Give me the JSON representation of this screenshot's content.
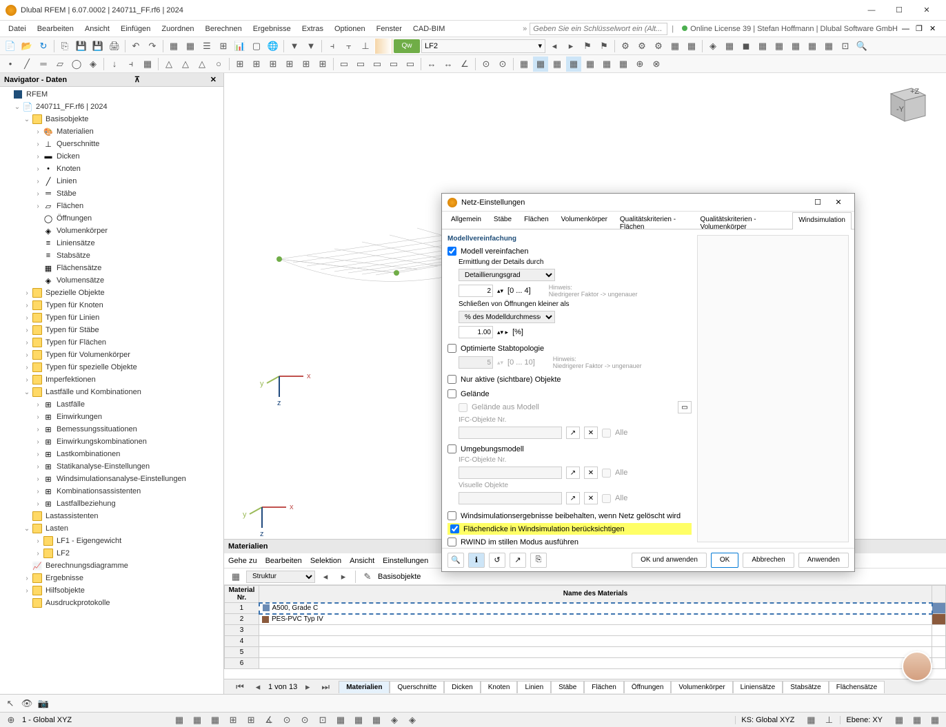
{
  "window": {
    "title": "Dlubal RFEM | 6.07.0002 | 240711_FF.rf6 | 2024",
    "min": "—",
    "max": "☐",
    "close": "✕"
  },
  "menu": {
    "items": [
      "Datei",
      "Bearbeiten",
      "Ansicht",
      "Einfügen",
      "Zuordnen",
      "Berechnen",
      "Ergebnisse",
      "Extras",
      "Optionen",
      "Fenster",
      "CAD-BIM"
    ],
    "keyword_placeholder": "Geben Sie ein Schlüsselwort ein (Alt...",
    "license": "Online License 39 | Stefan Hoffmann | Dlubal Software GmbH"
  },
  "toolbar": {
    "lf_label": "Qw",
    "lf_select": "LF2"
  },
  "navigator": {
    "title": "Navigator - Daten",
    "root": "RFEM",
    "model": "240711_FF.rf6 | 2024",
    "basisobjekte": "Basisobjekte",
    "items_basis": [
      "Materialien",
      "Querschnitte",
      "Dicken",
      "Knoten",
      "Linien",
      "Stäbe",
      "Flächen",
      "Öffnungen",
      "Volumenkörper",
      "Liniensätze",
      "Stabsätze",
      "Flächensätze",
      "Volumensätze"
    ],
    "spezielle": "Spezielle Objekte",
    "typen": [
      "Typen für Knoten",
      "Typen für Linien",
      "Typen für Stäbe",
      "Typen für Flächen",
      "Typen für Volumenkörper",
      "Typen für spezielle Objekte"
    ],
    "imperf": "Imperfektionen",
    "lastfaelle": "Lastfälle und Kombinationen",
    "lf_items": [
      "Lastfälle",
      "Einwirkungen",
      "Bemessungssituationen",
      "Einwirkungskombinationen",
      "Lastkombinationen",
      "Statikanalyse-Einstellungen",
      "Windsimulationsanalyse-Einstellungen",
      "Kombinationsassistenten",
      "Lastfallbeziehung"
    ],
    "lastass": "Lastassistenten",
    "lasten": "Lasten",
    "lasten_items": [
      "LF1 - Eigengewicht",
      "LF2"
    ],
    "berechnung": "Berechnungsdiagramme",
    "ergebnisse": "Ergebnisse",
    "hilfs": "Hilfsobjekte",
    "ausdruck": "Ausdruckprotokolle"
  },
  "materials": {
    "title": "Materialien",
    "menu": [
      "Gehe zu",
      "Bearbeiten",
      "Selektion",
      "Ansicht",
      "Einstellungen"
    ],
    "struktur": "Struktur",
    "basis": "Basisobjekte",
    "col_nr": "Material\nNr.",
    "col_name": "Name des Materials",
    "rows": [
      {
        "nr": "1",
        "name": "A500, Grade C",
        "color": "#6b8bb5"
      },
      {
        "nr": "2",
        "name": "PES-PVC Typ IV",
        "color": "#8b5a3c"
      },
      {
        "nr": "3",
        "name": ""
      },
      {
        "nr": "4",
        "name": ""
      },
      {
        "nr": "5",
        "name": ""
      },
      {
        "nr": "6",
        "name": ""
      }
    ],
    "page": "1 von 13",
    "tabs": [
      "Materialien",
      "Querschnitte",
      "Dicken",
      "Knoten",
      "Linien",
      "Stäbe",
      "Flächen",
      "Öffnungen",
      "Volumenkörper",
      "Liniensätze",
      "Stabsätze",
      "Flächensätze"
    ]
  },
  "dialog": {
    "title": "Netz-Einstellungen",
    "tabs": [
      "Allgemein",
      "Stäbe",
      "Flächen",
      "Volumenkörper",
      "Qualitätskriterien - Flächen",
      "Qualitätskriterien - Volumenkörper",
      "Windsimulation"
    ],
    "active_tab": 6,
    "section": "Modellvereinfachung",
    "simplify": "Modell vereinfachen",
    "detail_label": "Ermittlung der Details durch",
    "detail_method": "Detaillierungsgrad",
    "detail_value": "2",
    "detail_range": "[0 ... 4]",
    "hint_label": "Hinweis:",
    "hint_text": "Niedrigerer Faktor -> ungenauer",
    "close_openings": "Schließen von Öffnungen kleiner als",
    "close_method": "% des Modelldurchmessers",
    "close_value": "1.00",
    "close_unit": "[%]",
    "opt_stab": "Optimierte Stabtopologie",
    "opt_value": "5",
    "opt_range": "[0 ... 10]",
    "only_active": "Nur aktive (sichtbare) Objekte",
    "terrain": "Gelände",
    "terrain_model": "Gelände aus Modell",
    "ifc_label": "IFC-Objekte Nr.",
    "alle": "Alle",
    "umgebung": "Umgebungsmodell",
    "visuelle": "Visuelle Objekte",
    "keep_results": "Windsimulationsergebnisse beibehalten, wenn Netz gelöscht wird",
    "surface_thickness": "Flächendicke in Windsimulation berücksichtigen",
    "rwind_silent": "RWIND im stillen Modus ausführen",
    "btn_ok_apply": "OK und anwenden",
    "btn_ok": "OK",
    "btn_cancel": "Abbrechen",
    "btn_apply": "Anwenden"
  },
  "status": {
    "cs": "1 - Global XYZ",
    "ks": "KS: Global XYZ",
    "ebene": "Ebene: XY"
  },
  "colors": {
    "accent": "#0078d4",
    "green": "#70ad47",
    "highlight": "#ffff66"
  },
  "viewport": {
    "axes": [
      "x",
      "y",
      "z"
    ],
    "axis_colors": {
      "x": "#c0504d",
      "y": "#9bbb59",
      "z": "#1f497d"
    }
  }
}
